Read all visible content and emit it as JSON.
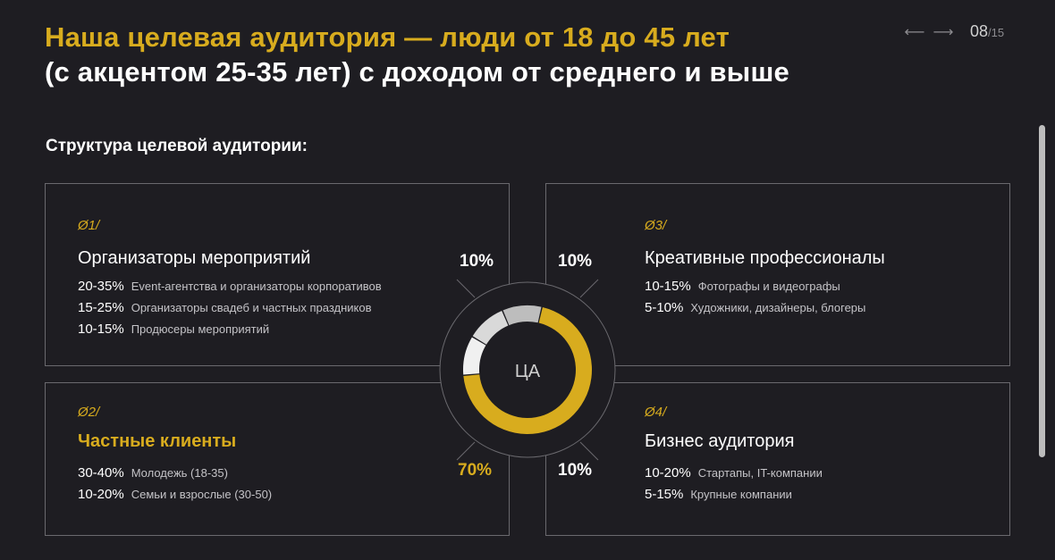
{
  "header": {
    "title_line1": "Наша целевая аудитория — люди от 18 до 45 лет",
    "title_line2": "(с акцентом 25-35 лет) с доходом от среднего и выше",
    "page_current": "08",
    "page_total": "/15",
    "prev_icon": "arrow-left-icon",
    "next_icon": "arrow-right-icon"
  },
  "subtitle": "Структура целевой аудитории:",
  "segments": [
    {
      "num": "Ø1/",
      "title": "Организаторы мероприятий",
      "items": [
        {
          "pct": "20-35%",
          "desc": "Event-агентства и организаторы корпоративов"
        },
        {
          "pct": "15-25%",
          "desc": "Организаторы свадеб и частных праздников"
        },
        {
          "pct": "10-15%",
          "desc": "Продюсеры мероприятий"
        }
      ]
    },
    {
      "num": "Ø2/",
      "title": "Частные клиенты",
      "items": [
        {
          "pct": "30-40%",
          "desc": "Молодежь (18-35)"
        },
        {
          "pct": "10-20%",
          "desc": "Семьи и взрослые (30-50)"
        }
      ]
    },
    {
      "num": "Ø3/",
      "title": "Креативные профессионалы",
      "items": [
        {
          "pct": "10-15%",
          "desc": "Фотографы и видеографы"
        },
        {
          "pct": "5-10%",
          "desc": "Художники, дизайнеры, блогеры"
        }
      ]
    },
    {
      "num": "Ø4/",
      "title": "Бизнес аудитория",
      "items": [
        {
          "pct": "10-20%",
          "desc": "Стартапы, IT-компании"
        },
        {
          "pct": "5-15%",
          "desc": "Крупные компании"
        }
      ]
    }
  ],
  "chart_data": {
    "type": "pie",
    "center_label": "ЦА",
    "categories": [
      "Организаторы мероприятий",
      "Креативные профессионалы",
      "Бизнес аудитория",
      "Частные клиенты"
    ],
    "values": [
      10,
      10,
      10,
      70
    ],
    "labels": [
      "10%",
      "10%",
      "10%",
      "70%"
    ],
    "colors": [
      "#f0f0f0",
      "#d9d9d9",
      "#bdbdbd",
      "#d8ac1e"
    ]
  },
  "colors": {
    "background": "#1e1d22",
    "accent": "#d8ac1e",
    "border": "#6a696e"
  }
}
